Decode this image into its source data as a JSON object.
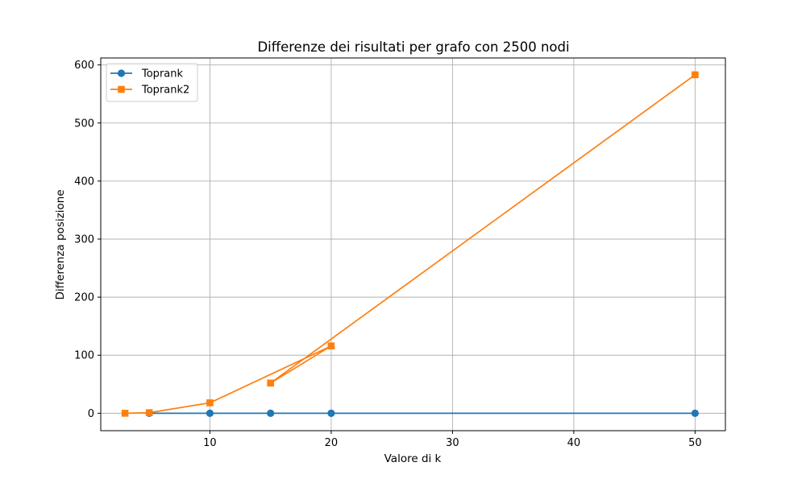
{
  "chart_data": {
    "type": "line",
    "title": "Differenze dei risultati per grafo con 2500 nodi",
    "xlabel": "Valore di k",
    "ylabel": "Differenza posizione",
    "xlim": [
      1,
      52.5
    ],
    "ylim": [
      -30,
      612
    ],
    "xticks": [
      10,
      20,
      30,
      40,
      50
    ],
    "yticks": [
      0,
      100,
      200,
      300,
      400,
      500,
      600
    ],
    "grid": true,
    "legend_position": "top-left",
    "series": [
      {
        "name": "Toprank",
        "color": "#1f77b4",
        "marker": "circle",
        "x": [
          5,
          10,
          15,
          20,
          50
        ],
        "y": [
          0,
          0,
          0,
          0,
          0
        ]
      },
      {
        "name": "Toprank2",
        "color": "#ff7f0e",
        "marker": "square",
        "x": [
          3,
          5,
          10,
          20,
          15,
          50
        ],
        "y": [
          0,
          1,
          18,
          116,
          52,
          583
        ]
      }
    ]
  }
}
